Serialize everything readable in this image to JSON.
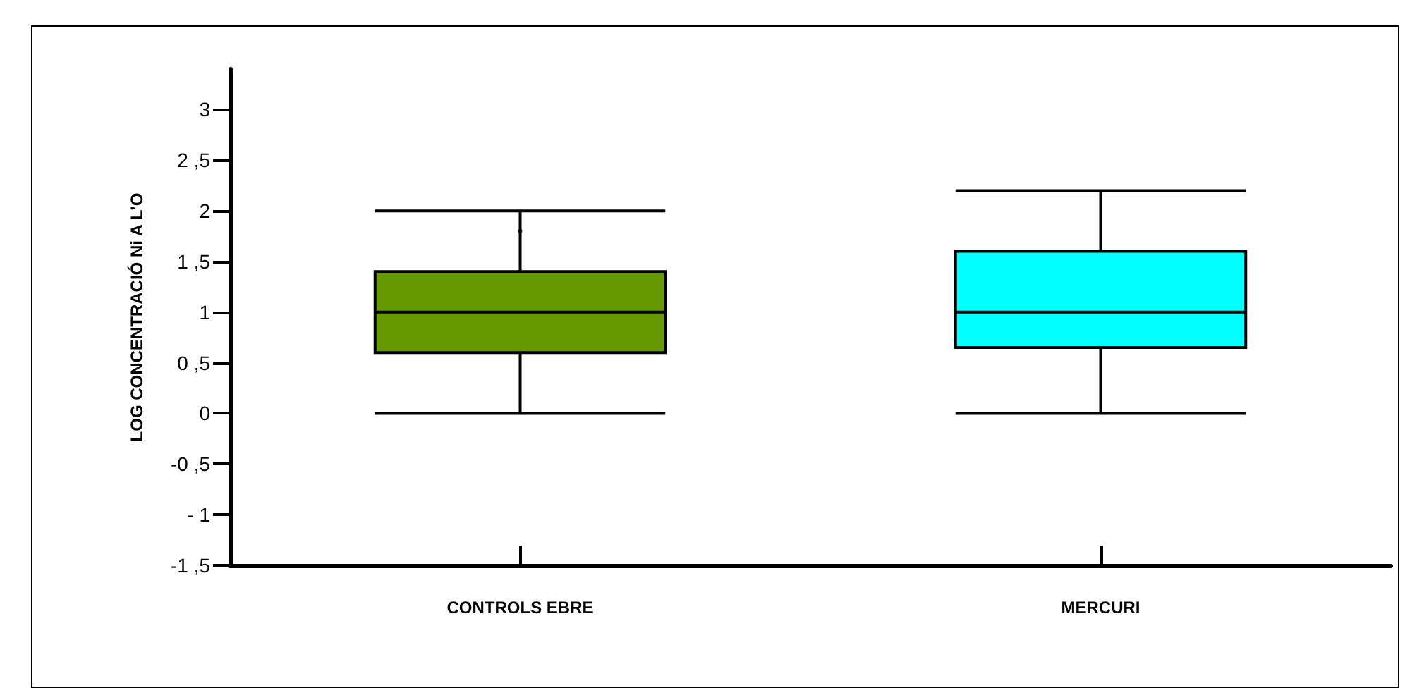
{
  "chart_data": {
    "type": "box",
    "ylabel": "LOG CONCENTRACIÓ Ni A L’O",
    "categories": [
      "CONTROLS EBRE",
      "MERCURI"
    ],
    "colors": [
      "#669900",
      "#00ffff"
    ],
    "boxes": [
      {
        "low": 0,
        "q1": 0.6,
        "median": 1,
        "q3": 1.4,
        "high": 2,
        "outliers": [
          1.8
        ]
      },
      {
        "low": 0,
        "q1": 0.65,
        "median": 1,
        "q3": 1.6,
        "high": 2.2
      }
    ],
    "ylim": [
      -1.5,
      3.4
    ],
    "yticks": [
      {
        "value": -1.5,
        "label": "-1 ,5"
      },
      {
        "value": -1,
        "label": "- 1"
      },
      {
        "value": -0.5,
        "label": "-0 ,5"
      },
      0,
      {
        "value": 0.5,
        "label": "0 ,5"
      },
      1,
      {
        "value": 1.5,
        "label": "1 ,5"
      },
      2,
      {
        "value": 2.5,
        "label": "2 ,5"
      },
      3
    ],
    "grid": false
  }
}
